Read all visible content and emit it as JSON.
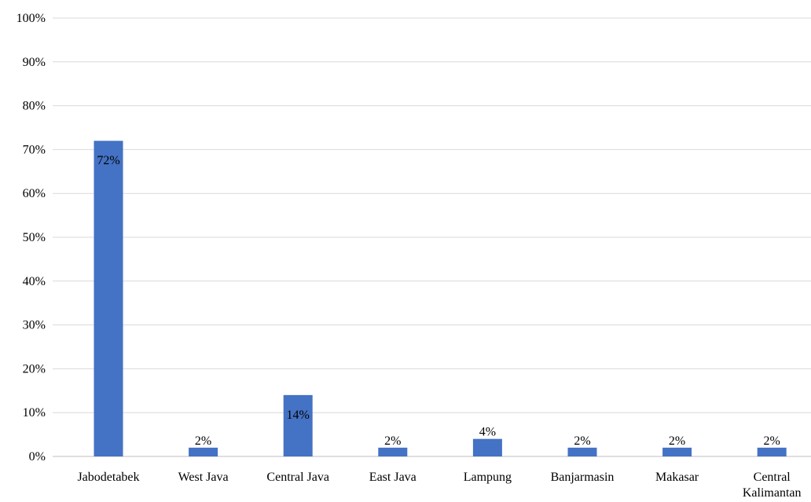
{
  "chart_data": {
    "type": "bar",
    "title": "",
    "xlabel": "",
    "ylabel": "",
    "categories": [
      [
        "Jabodetabek"
      ],
      [
        "West Java"
      ],
      [
        "Central Java"
      ],
      [
        "East Java"
      ],
      [
        "Lampung"
      ],
      [
        "Banjarmasin"
      ],
      [
        "Makasar"
      ],
      [
        "Central",
        "Kalimantan"
      ]
    ],
    "values": [
      72,
      2,
      14,
      2,
      4,
      2,
      2,
      2
    ],
    "data_labels": [
      "72%",
      "2%",
      "14%",
      "2%",
      "4%",
      "2%",
      "2%",
      "2%"
    ],
    "yticks": [
      "0%",
      "10%",
      "20%",
      "30%",
      "40%",
      "50%",
      "60%",
      "70%",
      "80%",
      "90%",
      "100%"
    ],
    "ylim": [
      0,
      100
    ],
    "grid": true,
    "legend": "none",
    "bar_color": "#4472c4"
  }
}
